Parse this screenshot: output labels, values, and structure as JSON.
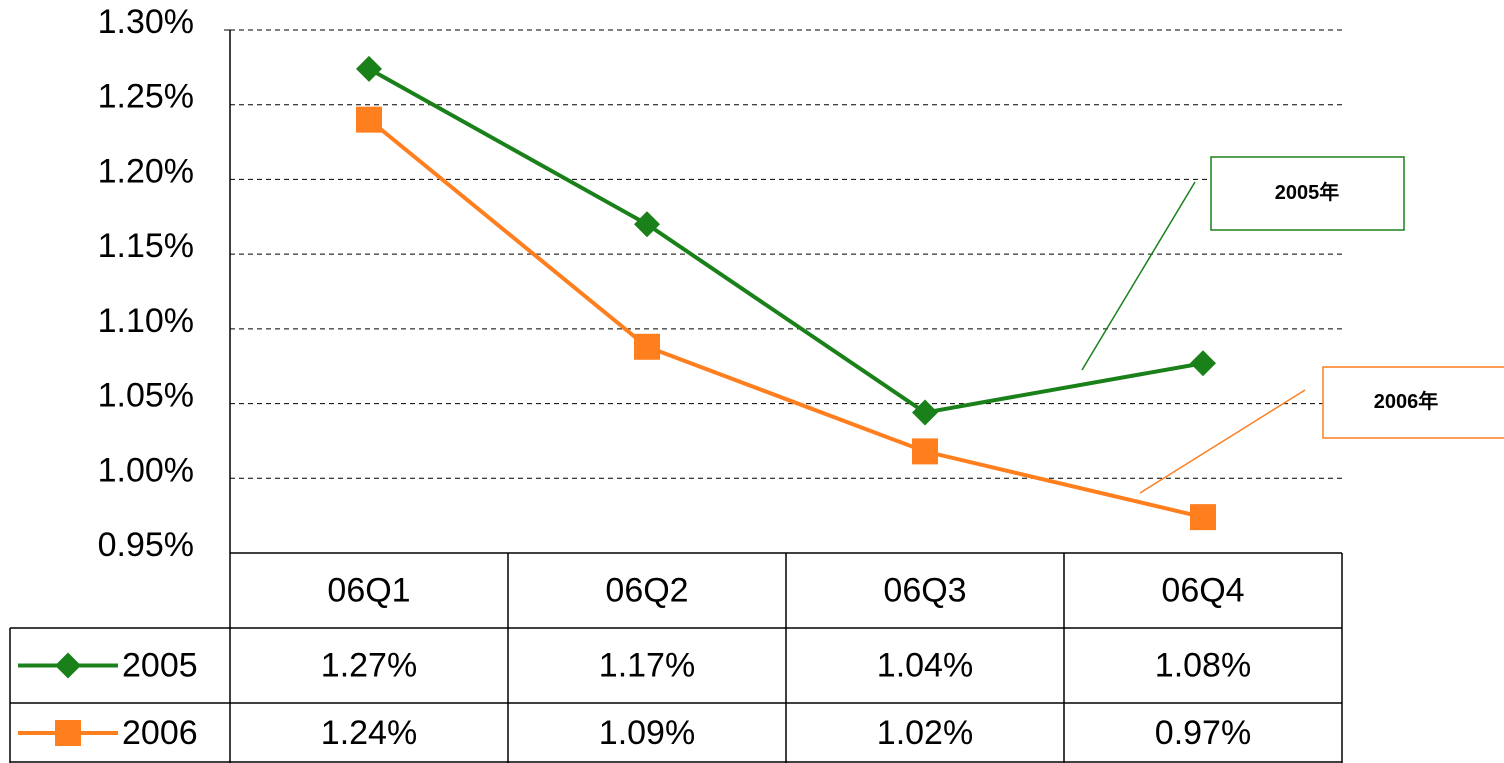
{
  "chart_data": {
    "type": "line",
    "categories": [
      "06Q1",
      "06Q2",
      "06Q3",
      "06Q4"
    ],
    "series": [
      {
        "name": "2005",
        "color": "#1a801a",
        "marker": "diamond",
        "values": [
          1.274,
          1.17,
          1.044,
          1.077
        ],
        "value_labels": [
          "1.27%",
          "1.17%",
          "1.04%",
          "1.08%"
        ]
      },
      {
        "name": "2006",
        "color": "#ff7f1f",
        "marker": "square",
        "values": [
          1.24,
          1.088,
          1.018,
          0.974
        ],
        "value_labels": [
          "1.24%",
          "1.09%",
          "1.02%",
          "0.97%"
        ]
      }
    ],
    "ylim": [
      0.95,
      1.3
    ],
    "yticks": [
      {
        "value": 0.95,
        "label": "0.95%"
      },
      {
        "value": 1.0,
        "label": "1.00%"
      },
      {
        "value": 1.05,
        "label": "1.05%"
      },
      {
        "value": 1.1,
        "label": "1.10%"
      },
      {
        "value": 1.15,
        "label": "1.15%"
      },
      {
        "value": 1.2,
        "label": "1.20%"
      },
      {
        "value": 1.25,
        "label": "1.25%"
      },
      {
        "value": 1.3,
        "label": "1.30%"
      }
    ],
    "grid": true,
    "data_table": true,
    "annotations": [
      {
        "text": "2005年"
      },
      {
        "text": "2006年"
      }
    ]
  }
}
